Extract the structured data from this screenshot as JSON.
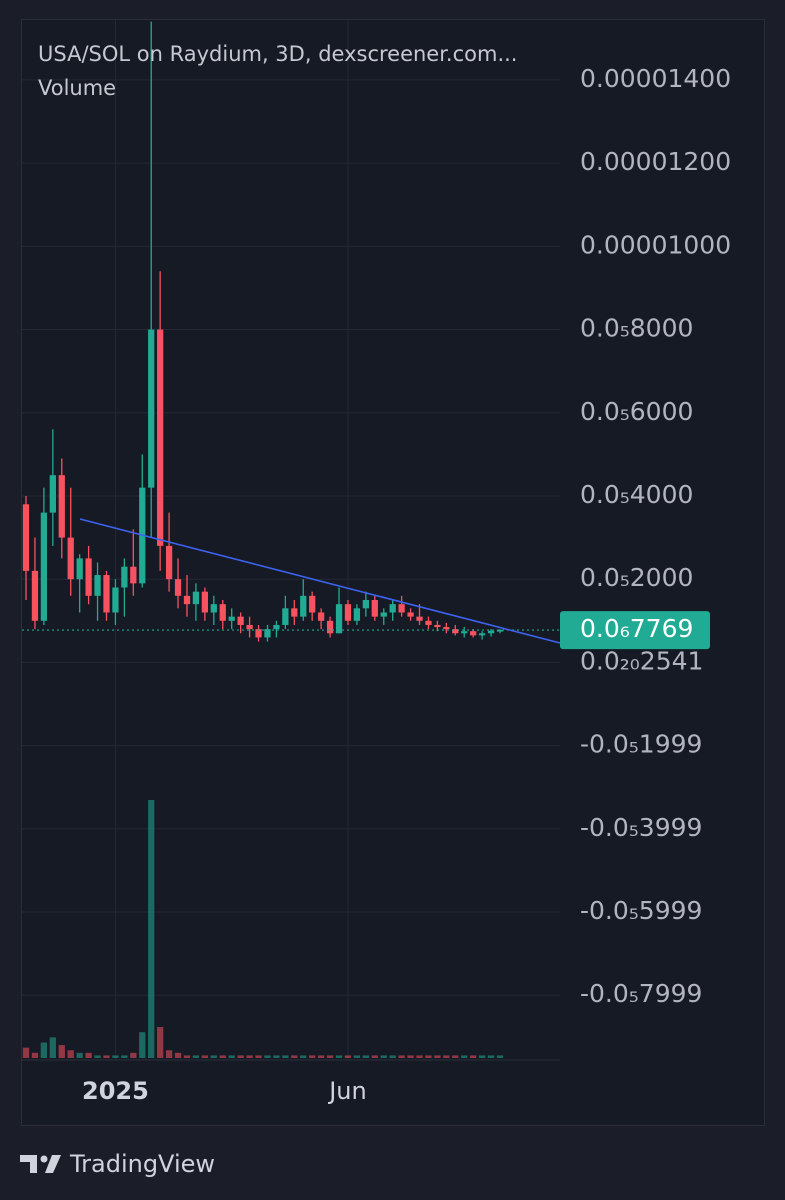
{
  "chart_data": {
    "type": "candlestick",
    "title": "USA/SOL on Raydium, 3D, dexscreener.com...",
    "volume_label": "Volume",
    "categories": [
      null,
      null,
      null,
      null,
      null,
      null,
      null,
      null,
      null,
      null,
      "2025",
      null,
      null,
      null,
      null,
      null,
      null,
      null,
      null,
      null,
      null,
      null,
      null,
      null,
      null,
      null,
      null,
      null,
      null,
      null,
      null,
      null,
      null,
      null,
      null,
      null,
      "Jun",
      null,
      null,
      null,
      null,
      null,
      null,
      null,
      null,
      null,
      null,
      null,
      null,
      null,
      null,
      null,
      null,
      null
    ],
    "open": [
      3.8e-06,
      2.2e-06,
      1e-06,
      3.6e-06,
      4.5e-06,
      3e-06,
      2e-06,
      2.5e-06,
      1.6e-06,
      2.1e-06,
      1.2e-06,
      1.8e-06,
      2.3e-06,
      1.9e-06,
      4.2e-06,
      8e-06,
      2.8e-06,
      2e-06,
      1.6e-06,
      1.4e-06,
      1.7e-06,
      1.2e-06,
      1.4e-06,
      1e-06,
      1.1e-06,
      9e-07,
      8e-07,
      6e-07,
      8e-07,
      9e-07,
      1.3e-06,
      1.1e-06,
      1.6e-06,
      1.2e-06,
      1e-06,
      7e-07,
      1.4e-06,
      1e-06,
      1.3e-06,
      1.5e-06,
      1.1e-06,
      1.2e-06,
      1.4e-06,
      1.2e-06,
      1.1e-06,
      1e-06,
      9e-07,
      8.5e-07,
      8e-07,
      7e-07,
      7.5e-07,
      6.5e-07,
      7e-07,
      7.6e-07
    ],
    "high": [
      4e-06,
      3e-06,
      4.2e-06,
      5.6e-06,
      4.9e-06,
      4.2e-06,
      2.6e-06,
      2.8e-06,
      2.4e-06,
      2.2e-06,
      2e-06,
      2.5e-06,
      3.2e-06,
      5e-06,
      1.54e-05,
      9.4e-06,
      3.6e-06,
      2.5e-06,
      2.1e-06,
      1.9e-06,
      1.8e-06,
      1.6e-06,
      1.5e-06,
      1.3e-06,
      1.2e-06,
      1.1e-06,
      9e-07,
      9e-07,
      1e-06,
      1.6e-06,
      1.5e-06,
      2e-06,
      1.7e-06,
      1.3e-06,
      1.1e-06,
      1.8e-06,
      1.5e-06,
      1.4e-06,
      1.7e-06,
      1.6e-06,
      1.3e-06,
      1.5e-06,
      1.6e-06,
      1.3e-06,
      1.4e-06,
      1.1e-06,
      1e-06,
      9.5e-07,
      9e-07,
      8.5e-07,
      8e-07,
      7.5e-07,
      8e-07,
      8e-07
    ],
    "low": [
      1.5e-06,
      8e-07,
      9e-07,
      2.8e-06,
      2.5e-06,
      1.6e-06,
      1.2e-06,
      1.4e-06,
      1e-06,
      1e-06,
      9e-07,
      1.1e-06,
      1.6e-06,
      1.8e-06,
      3e-06,
      2.2e-06,
      1.7e-06,
      1.3e-06,
      1.1e-06,
      1e-06,
      1e-06,
      9e-07,
      8e-07,
      8e-07,
      7e-07,
      6e-07,
      5e-07,
      5e-07,
      6e-07,
      8e-07,
      9e-07,
      1e-06,
      1e-06,
      8e-07,
      6e-07,
      7e-07,
      9e-07,
      9e-07,
      1.1e-06,
      1e-06,
      9e-07,
      1e-06,
      1.1e-06,
      1e-06,
      9e-07,
      8e-07,
      7.5e-07,
      7e-07,
      6.5e-07,
      6e-07,
      6e-07,
      5.5e-07,
      6.2e-07,
      7e-07
    ],
    "close": [
      2.2e-06,
      1e-06,
      3.6e-06,
      4.5e-06,
      3e-06,
      2e-06,
      2.5e-06,
      1.6e-06,
      2.1e-06,
      1.2e-06,
      1.8e-06,
      2.3e-06,
      1.9e-06,
      4.2e-06,
      8e-06,
      2.8e-06,
      2e-06,
      1.6e-06,
      1.4e-06,
      1.7e-06,
      1.2e-06,
      1.4e-06,
      1e-06,
      1.1e-06,
      9e-07,
      8e-07,
      6e-07,
      8e-07,
      9e-07,
      1.3e-06,
      1.1e-06,
      1.6e-06,
      1.2e-06,
      1e-06,
      7e-07,
      1.4e-06,
      1e-06,
      1.3e-06,
      1.5e-06,
      1.1e-06,
      1.2e-06,
      1.4e-06,
      1.2e-06,
      1.1e-06,
      1e-06,
      9e-07,
      8.5e-07,
      8e-07,
      7e-07,
      7.5e-07,
      6.5e-07,
      7e-07,
      7.6e-07,
      7.769e-07
    ],
    "volume": [
      4,
      2,
      6,
      8,
      5,
      3,
      2,
      2,
      1,
      1,
      1,
      1,
      2,
      10,
      100,
      12,
      3,
      2,
      1,
      1,
      1,
      1,
      1,
      1,
      1,
      1,
      1,
      1,
      1,
      1,
      1,
      1,
      1,
      1,
      1,
      1,
      1,
      1,
      1,
      1,
      1,
      1,
      1,
      1,
      1,
      1,
      1,
      1,
      1,
      1,
      1,
      1,
      1,
      1
    ],
    "colors": {
      "up": "#22ab94",
      "down": "#f7525f"
    },
    "ylim": [
      -9.556e-06,
      1.544e-05
    ],
    "yticks": [
      {
        "value": 1.4e-05,
        "label": "0.00001400"
      },
      {
        "value": 1.2e-05,
        "label": "0.00001200"
      },
      {
        "value": 1e-05,
        "label": "0.00001000"
      },
      {
        "value": 8e-06,
        "label": "0.0₅8000"
      },
      {
        "value": 6e-06,
        "label": "0.0₅6000"
      },
      {
        "value": 4e-06,
        "label": "0.0₅4000"
      },
      {
        "value": 2e-06,
        "label": "0.0₅2000"
      },
      {
        "value": 2.541e-21,
        "label": "0.0₂₀2541"
      },
      {
        "value": -1.999e-06,
        "label": "-0.0₅1999"
      },
      {
        "value": -3.999e-06,
        "label": "-0.0₅3999"
      },
      {
        "value": -5.999e-06,
        "label": "-0.0₅5999"
      },
      {
        "value": -7.999e-06,
        "label": "-0.0₅7999"
      }
    ],
    "last_price": {
      "value": 7.769e-07,
      "label": "0.0₆7769"
    },
    "grid": true
  },
  "footer": {
    "brand": "TradingView"
  }
}
